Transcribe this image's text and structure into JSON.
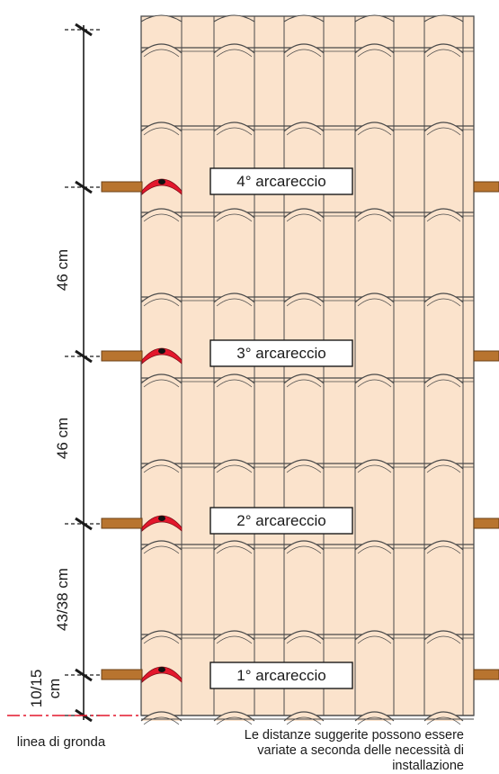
{
  "purlins": [
    {
      "label": "4° arcareccio"
    },
    {
      "label": "3° arcareccio"
    },
    {
      "label": "2° arcareccio"
    },
    {
      "label": "1° arcareccio"
    }
  ],
  "dimensions": [
    {
      "text": "46 cm"
    },
    {
      "text": "46 cm"
    },
    {
      "text": "43/38 cm"
    },
    {
      "line1": "10/15",
      "line2": "cm"
    }
  ],
  "eave_label": "linea di gronda",
  "note": [
    "Le distanze suggerite possono essere",
    "variate a seconda delle necessità di",
    "installazione"
  ],
  "colors": {
    "tile_fill": "#fbe3cc",
    "tile_stroke": "#4a4a4a",
    "purlin": "#b8742f",
    "hook_red": "#e3172c",
    "eave_line": "#e3172c"
  }
}
